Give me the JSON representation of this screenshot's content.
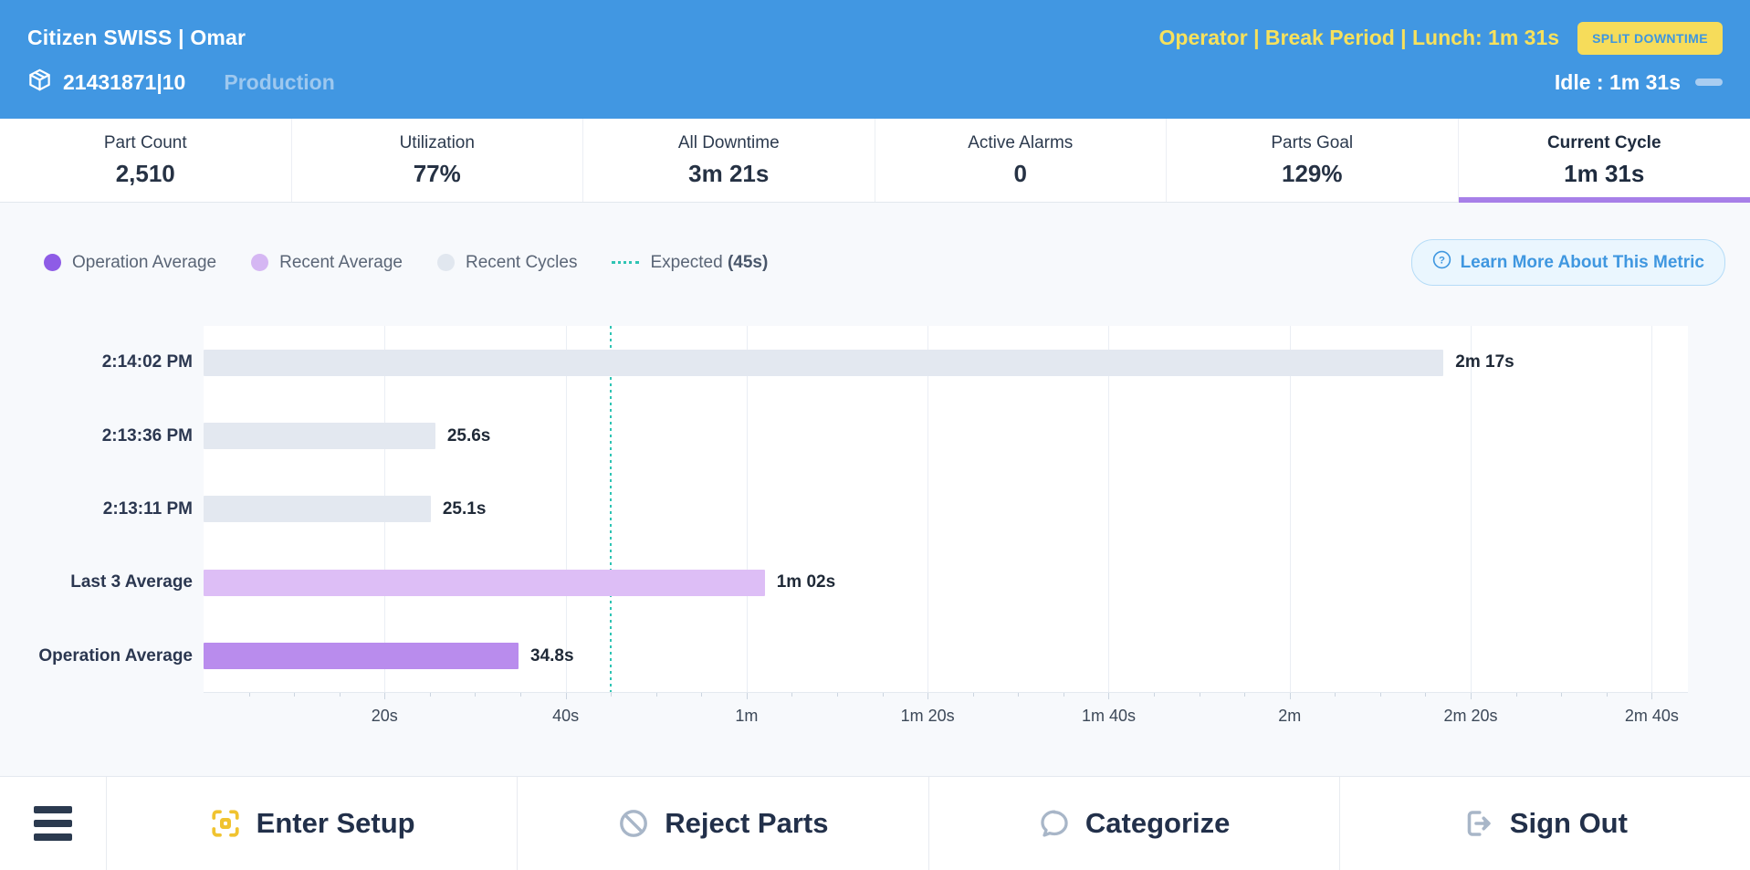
{
  "header": {
    "machine_title": "Citizen SWISS | Omar",
    "status_text": "Operator | Break Period | Lunch: 1m 31s",
    "split_downtime_label": "SPLIT DOWNTIME",
    "program_id": "21431871|10",
    "mode_label": "Production",
    "idle_label": "Idle : 1m 31s"
  },
  "stats": {
    "items": [
      {
        "label": "Part Count",
        "value": "2,510",
        "active": false
      },
      {
        "label": "Utilization",
        "value": "77%",
        "active": false
      },
      {
        "label": "All Downtime",
        "value": "3m 21s",
        "active": false
      },
      {
        "label": "Active Alarms",
        "value": "0",
        "active": false
      },
      {
        "label": "Parts Goal",
        "value": "129%",
        "active": false
      },
      {
        "label": "Current Cycle",
        "value": "1m 31s",
        "active": true
      }
    ]
  },
  "legend": {
    "items": [
      {
        "label": "Operation Average",
        "color": "#8e5ce6"
      },
      {
        "label": "Recent Average",
        "color": "#d5b7f3"
      },
      {
        "label": "Recent Cycles",
        "color": "#e1e7ef"
      }
    ],
    "expected_label": "Expected",
    "expected_value": "(45s)",
    "expected_color": "#2fc4b4"
  },
  "learn_more": {
    "label": "Learn More About This Metric",
    "icon": "question-circle-icon"
  },
  "chart_data": {
    "type": "bar",
    "orientation": "horizontal",
    "categories": [
      "2:14:02 PM",
      "2:13:36 PM",
      "2:13:11 PM",
      "Last 3 Average",
      "Operation Average"
    ],
    "rows": [
      {
        "category": "2:14:02 PM",
        "seconds": 137,
        "value_label": "2m 17s",
        "series": "Recent Cycles"
      },
      {
        "category": "2:13:36 PM",
        "seconds": 25.6,
        "value_label": "25.6s",
        "series": "Recent Cycles"
      },
      {
        "category": "2:13:11 PM",
        "seconds": 25.1,
        "value_label": "25.1s",
        "series": "Recent Cycles"
      },
      {
        "category": "Last 3 Average",
        "seconds": 62,
        "value_label": "1m 02s",
        "series": "Recent Average"
      },
      {
        "category": "Operation Average",
        "seconds": 34.8,
        "value_label": "34.8s",
        "series": "Operation Average"
      }
    ],
    "series_colors": {
      "Recent Cycles": "#e3e8f0",
      "Recent Average": "#ddbef6",
      "Operation Average": "#b98ced"
    },
    "expected": {
      "seconds": 45,
      "label": "45s",
      "color": "#2fc4b4"
    },
    "x_ticks": [
      {
        "seconds": 20,
        "label": "20s"
      },
      {
        "seconds": 40,
        "label": "40s"
      },
      {
        "seconds": 60,
        "label": "1m"
      },
      {
        "seconds": 80,
        "label": "1m 20s"
      },
      {
        "seconds": 100,
        "label": "1m 40s"
      },
      {
        "seconds": 120,
        "label": "2m"
      },
      {
        "seconds": 140,
        "label": "2m 20s"
      },
      {
        "seconds": 160,
        "label": "2m 40s"
      }
    ],
    "xlim_seconds": [
      0,
      164
    ],
    "grid": true
  },
  "bottom_bar": {
    "menu_icon": "hamburger-icon",
    "items": [
      {
        "label": "Enter Setup",
        "icon": "scan-frame-icon"
      },
      {
        "label": "Reject Parts",
        "icon": "no-entry-icon"
      },
      {
        "label": "Categorize",
        "icon": "speech-bubble-icon"
      },
      {
        "label": "Sign Out",
        "icon": "sign-out-icon"
      }
    ]
  },
  "colors": {
    "header_blue": "#4197e2",
    "accent_yellow": "#f6dc5a",
    "yellow_text": "#f7e15c",
    "active_tab_purple": "#a77fe8",
    "expected_teal": "#2fc4b4",
    "page_bg": "#f7f9fc",
    "footer_icon_gray": "#a8b6c8",
    "footer_icon_yellow": "#f0c330"
  }
}
